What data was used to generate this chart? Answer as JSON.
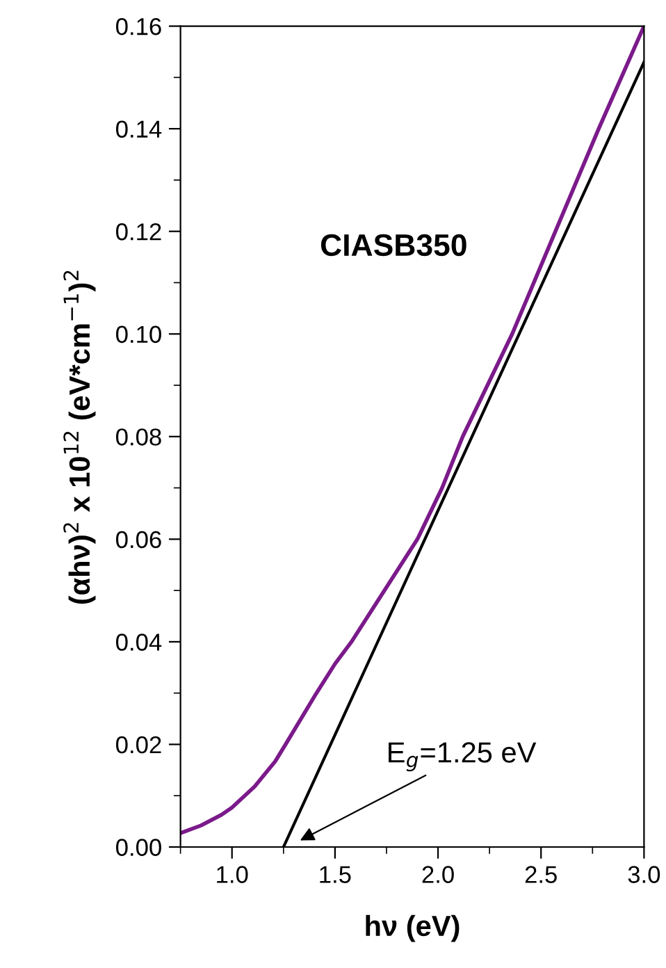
{
  "chart_data": {
    "type": "line",
    "xlabel": "hν (eV)",
    "ylabel": "(αhν)$^{2}$ x 10$^{12}$ (eV*cm$^{−1}$)$^{2}$",
    "annotations": [
      "CIASB350",
      "E$_{g}$=1.25 eV"
    ],
    "series": [
      {
        "color": "#7b1a8a",
        "x": [
          0.75,
          0.85,
          0.95,
          1.0,
          1.11,
          1.21,
          1.26,
          1.41,
          1.5,
          1.58,
          1.9,
          2.02,
          2.12,
          2.36,
          2.57,
          2.78,
          3.0
        ],
        "values": [
          0.0027,
          0.0042,
          0.0063,
          0.0077,
          0.0118,
          0.0167,
          0.02,
          0.03,
          0.0357,
          0.04,
          0.06,
          0.07,
          0.08,
          0.1,
          0.12,
          0.14,
          0.16
        ]
      },
      {
        "color": "#000000",
        "x": [
          1.25,
          3.0
        ],
        "values": [
          0.0,
          0.153
        ]
      }
    ],
    "xlim": [
      0.75,
      3.0
    ],
    "ylim": [
      0.0,
      0.16
    ],
    "xticks": [
      {
        "value": 1.0,
        "label": "1.0"
      },
      {
        "value": 1.5,
        "label": "1.5"
      },
      {
        "value": 2.0,
        "label": "2.0"
      },
      {
        "value": 2.5,
        "label": "2.5"
      },
      {
        "value": 3.0,
        "label": "3.0"
      }
    ],
    "yticks": [
      {
        "value": 0.0,
        "label": "0.00"
      },
      {
        "value": 0.02,
        "label": "0.02"
      },
      {
        "value": 0.04,
        "label": "0.04"
      },
      {
        "value": 0.06,
        "label": "0.06"
      },
      {
        "value": 0.08,
        "label": "0.08"
      },
      {
        "value": 0.1,
        "label": "0.10"
      },
      {
        "value": 0.12,
        "label": "0.12"
      },
      {
        "value": 0.14,
        "label": "0.14"
      },
      {
        "value": 0.16,
        "label": "0.16"
      }
    ],
    "grid": false,
    "marker": "none",
    "line_style": "solid"
  }
}
